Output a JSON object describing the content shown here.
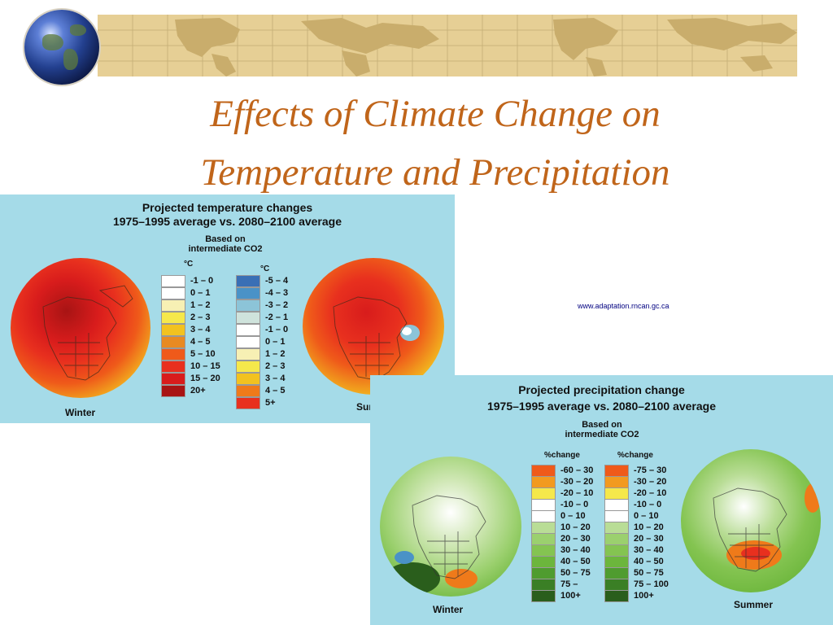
{
  "slide": {
    "title_line1": "Effects of Climate Change on",
    "title_line2": "Temperature and Precipitation",
    "source_url": "www.adaptation.rncan.gc.ca"
  },
  "temperature_panel": {
    "title_line1": "Projected temperature changes",
    "title_line2": "1975–1995 average vs. 2080–2100 average",
    "based_on_line1": "Based on",
    "based_on_line2": "intermediate CO2",
    "winter_label": "Winter",
    "summer_label": "Summer",
    "winter_legend": {
      "unit": "°C",
      "items": [
        {
          "label": "-1 – 0",
          "color": "#ffffff"
        },
        {
          "label": "0 – 1",
          "color": "#ffffff"
        },
        {
          "label": "1 – 2",
          "color": "#f7f0b4"
        },
        {
          "label": "2 – 3",
          "color": "#f5e84b"
        },
        {
          "label": "3 – 4",
          "color": "#f2c21f"
        },
        {
          "label": "4 – 5",
          "color": "#e88a22"
        },
        {
          "label": "5 – 10",
          "color": "#ef5a1a"
        },
        {
          "label": "10 – 15",
          "color": "#e8301e"
        },
        {
          "label": "15 – 20",
          "color": "#d81c1c"
        },
        {
          "label": "20+",
          "color": "#a81414"
        }
      ]
    },
    "summer_legend": {
      "unit": "°C",
      "items": [
        {
          "label": "-5 – 4",
          "color": "#3a6fb5"
        },
        {
          "label": "-4 – 3",
          "color": "#4a92c7"
        },
        {
          "label": "-3 – 2",
          "color": "#8cc4d8"
        },
        {
          "label": "-2 – 1",
          "color": "#cfe3dc"
        },
        {
          "label": "-1 – 0",
          "color": "#ffffff"
        },
        {
          "label": "0 – 1",
          "color": "#ffffff"
        },
        {
          "label": "1 – 2",
          "color": "#f7f0b4"
        },
        {
          "label": "2 – 3",
          "color": "#f5e84b"
        },
        {
          "label": "3 – 4",
          "color": "#f2c21f"
        },
        {
          "label": "4 – 5",
          "color": "#ef7a1a"
        },
        {
          "label": "5+",
          "color": "#e8301e"
        }
      ]
    }
  },
  "precipitation_panel": {
    "title_line1": "Projected precipitation change",
    "title_line2": "1975–1995 average vs. 2080–2100 average",
    "based_on_line1": "Based on",
    "based_on_line2": "intermediate CO2",
    "winter_label": "Winter",
    "summer_label": "Summer",
    "winter_legend": {
      "unit": "%change",
      "items": [
        {
          "label": "-60 – 30",
          "color": "#ef5a1a"
        },
        {
          "label": "-30 – 20",
          "color": "#f29a1f"
        },
        {
          "label": "-20 – 10",
          "color": "#f5e84b"
        },
        {
          "label": "-10 – 0",
          "color": "#ffffff"
        },
        {
          "label": "0 – 10",
          "color": "#ffffff"
        },
        {
          "label": "10 – 20",
          "color": "#b9dd96"
        },
        {
          "label": "20 – 30",
          "color": "#9bd06e"
        },
        {
          "label": "30 – 40",
          "color": "#84c451"
        },
        {
          "label": "40 – 50",
          "color": "#6cb63c"
        },
        {
          "label": "50 – 75",
          "color": "#4f9c2f"
        },
        {
          "label": "75 –",
          "color": "#3a7f25"
        },
        {
          "label": "100+",
          "color": "#2a5e1c"
        }
      ]
    },
    "summer_legend": {
      "unit": "%change",
      "items": [
        {
          "label": "-75 – 30",
          "color": "#ef5a1a"
        },
        {
          "label": "-30 – 20",
          "color": "#f29a1f"
        },
        {
          "label": "-20 – 10",
          "color": "#f5e84b"
        },
        {
          "label": "-10 – 0",
          "color": "#ffffff"
        },
        {
          "label": "0 – 10",
          "color": "#ffffff"
        },
        {
          "label": "10 – 20",
          "color": "#b9dd96"
        },
        {
          "label": "20 – 30",
          "color": "#9bd06e"
        },
        {
          "label": "30 – 40",
          "color": "#84c451"
        },
        {
          "label": "40 – 50",
          "color": "#6cb63c"
        },
        {
          "label": "50 – 75",
          "color": "#4f9c2f"
        },
        {
          "label": "75 – 100",
          "color": "#3a7f25"
        },
        {
          "label": "100+",
          "color": "#2a5e1c"
        }
      ]
    }
  }
}
